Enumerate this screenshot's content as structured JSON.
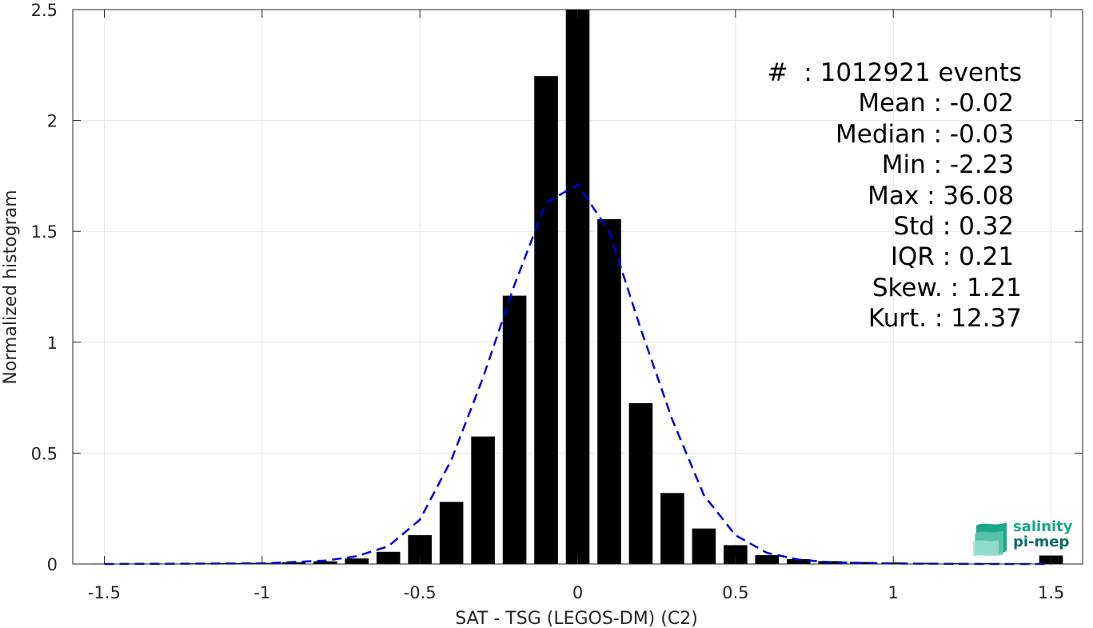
{
  "chart_data": {
    "type": "bar",
    "xlabel": "SAT - TSG (LEGOS-DM) (C2)",
    "ylabel": "Normalized histogram",
    "xlim": [
      -1.6,
      1.6
    ],
    "ylim": [
      0,
      2.5
    ],
    "xticks": [
      "-1.5",
      "-1",
      "-0.5",
      "0",
      "0.5",
      "1",
      "1.5"
    ],
    "xtick_values": [
      -1.5,
      -1,
      -0.5,
      0,
      0.5,
      1,
      1.5
    ],
    "yticks": [
      "0",
      "0.5",
      "1",
      "1.5",
      "2",
      "2.5"
    ],
    "ytick_values": [
      0,
      0.5,
      1,
      1.5,
      2,
      2.5
    ],
    "grid": true,
    "bar_color": "#000000",
    "bars": {
      "x": [
        -1.5,
        -1.4,
        -1.3,
        -1.2,
        -1.1,
        -1.0,
        -0.9,
        -0.8,
        -0.7,
        -0.6,
        -0.5,
        -0.4,
        -0.3,
        -0.2,
        -0.1,
        0.0,
        0.1,
        0.2,
        0.3,
        0.4,
        0.5,
        0.6,
        0.7,
        0.8,
        0.9,
        1.0,
        1.1,
        1.2,
        1.3,
        1.4,
        1.5
      ],
      "values": [
        0.002,
        0.002,
        0.002,
        0.003,
        0.004,
        0.005,
        0.008,
        0.012,
        0.025,
        0.055,
        0.13,
        0.28,
        0.575,
        1.21,
        2.2,
        2.5,
        1.555,
        0.725,
        0.32,
        0.16,
        0.085,
        0.04,
        0.022,
        0.013,
        0.009,
        0.007,
        0.005,
        0.004,
        0.004,
        0.003,
        0.038
      ]
    },
    "fit_curve": {
      "style": "dashed",
      "color": "#0000dd",
      "x": [
        -1.5,
        -1.0,
        -0.8,
        -0.7,
        -0.6,
        -0.5,
        -0.4,
        -0.3,
        -0.2,
        -0.1,
        0.0,
        0.1,
        0.2,
        0.3,
        0.4,
        0.5,
        0.6,
        0.7,
        0.8,
        1.0,
        1.3,
        1.5
      ],
      "values": [
        0.0,
        0.003,
        0.015,
        0.035,
        0.08,
        0.2,
        0.47,
        0.84,
        1.26,
        1.63,
        1.71,
        1.5,
        1.06,
        0.65,
        0.31,
        0.13,
        0.05,
        0.02,
        0.008,
        0.002,
        0.0,
        0.0
      ]
    }
  },
  "stats": [
    "#  : 1012921 events",
    "Mean : -0.02 ",
    "Median : -0.03 ",
    "Min : -2.23 ",
    "Max : 36.08 ",
    "Std : 0.32 ",
    "IQR : 0.21 ",
    "Skew. : 1.21",
    "Kurt. : 12.37"
  ],
  "logo": {
    "line1": "salinity",
    "line2": "pi-mep"
  }
}
